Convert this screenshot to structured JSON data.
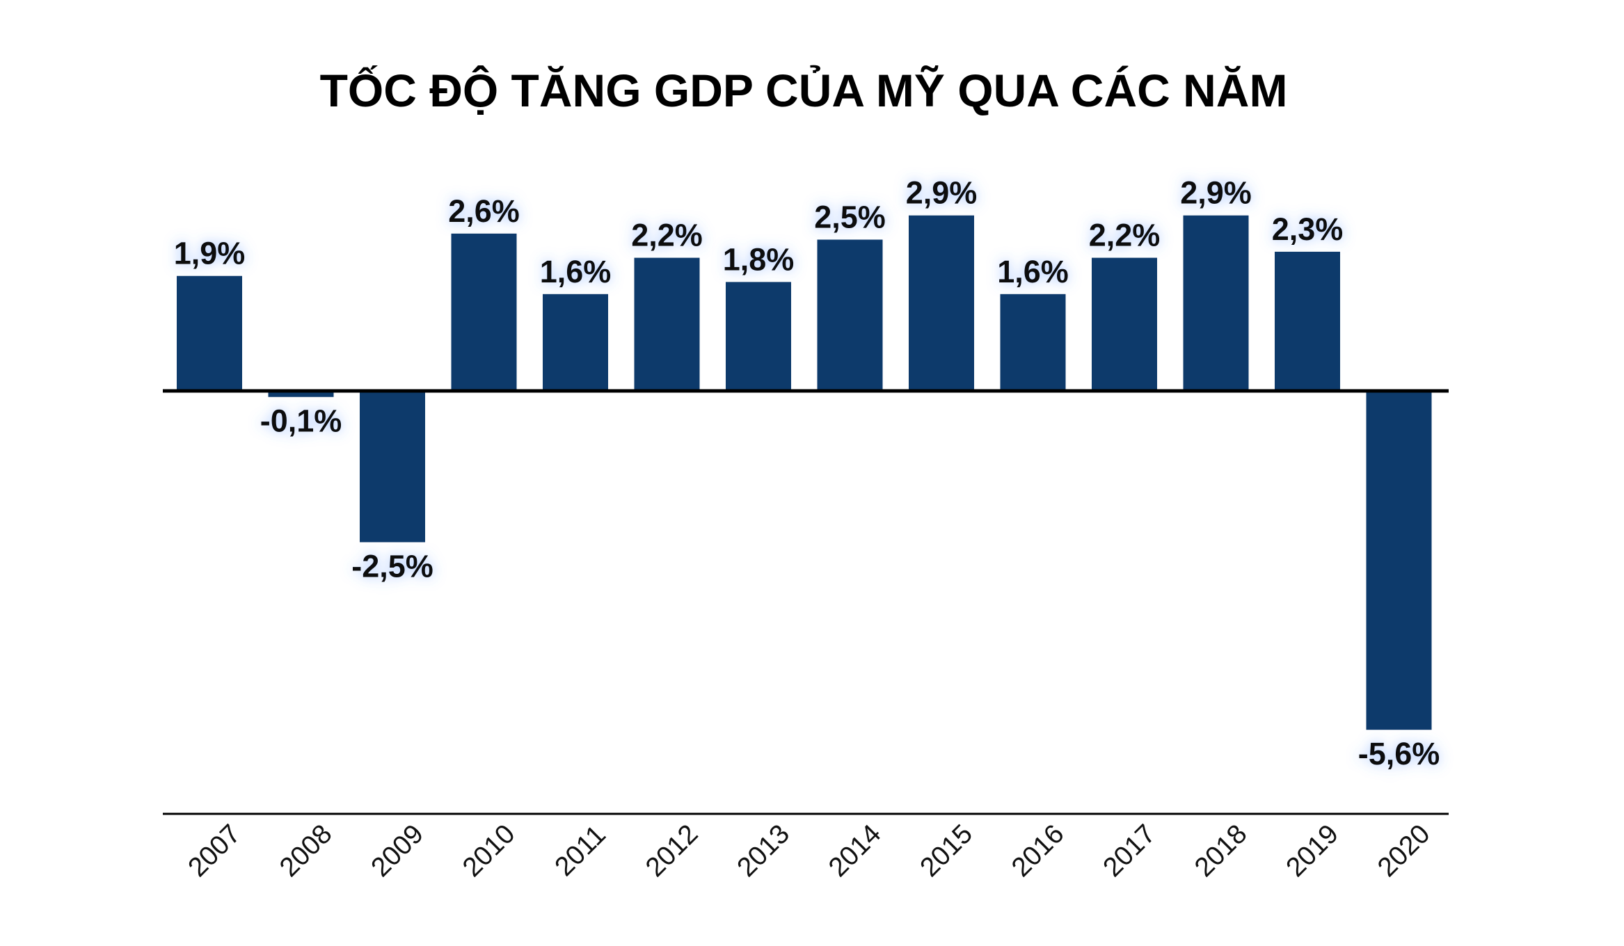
{
  "chart_data": {
    "type": "bar",
    "title": "TỐC ĐỘ TĂNG GDP CỦA MỸ QUA CÁC NĂM",
    "xlabel": "",
    "ylabel": "",
    "categories": [
      "2007",
      "2008",
      "2009",
      "2010",
      "2011",
      "2012",
      "2013",
      "2014",
      "2015",
      "2016",
      "2017",
      "2018",
      "2019",
      "2020"
    ],
    "values": [
      1.9,
      -0.1,
      -2.5,
      2.6,
      1.6,
      2.2,
      1.8,
      2.5,
      2.9,
      1.6,
      2.2,
      2.9,
      2.3,
      -5.6
    ],
    "value_labels": [
      "1,9%",
      "-0,1%",
      "-2,5%",
      "2,6%",
      "1,6%",
      "2,2%",
      "1,8%",
      "2,5%",
      "2,9%",
      "1,6%",
      "2,2%",
      "2,9%",
      "2,3%",
      "-5,6%"
    ],
    "ylim": [
      -7,
      3.2
    ],
    "grid": false,
    "legend": "none",
    "colors": {
      "bar": "#0d3a6b",
      "axis": "#000000",
      "label_glow": "#3a7bff"
    }
  }
}
